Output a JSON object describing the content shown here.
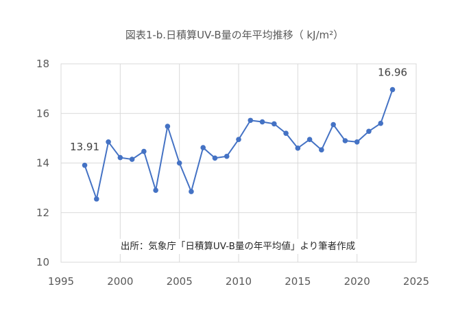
{
  "chart_data": {
    "type": "line",
    "title": "図表1-b.日積算UV-B量の年平均推移（ kJ/m²）",
    "xlabel": "",
    "ylabel": "",
    "xlim": [
      1995,
      2025
    ],
    "ylim": [
      10,
      18
    ],
    "x_ticks": [
      1995,
      2000,
      2005,
      2010,
      2015,
      2020,
      2025
    ],
    "y_ticks": [
      10,
      12,
      14,
      16,
      18
    ],
    "grid": true,
    "legend": null,
    "x": [
      1997,
      1998,
      1999,
      2000,
      2001,
      2002,
      2003,
      2004,
      2005,
      2006,
      2007,
      2008,
      2009,
      2010,
      2011,
      2012,
      2013,
      2014,
      2015,
      2016,
      2017,
      2018,
      2019,
      2020,
      2021,
      2022,
      2023
    ],
    "series": [
      {
        "name": "日積算UV-B量 年平均 (kJ/m²)",
        "color": "#4472C4",
        "values": [
          13.91,
          12.55,
          14.85,
          14.22,
          14.15,
          14.47,
          12.9,
          15.48,
          14.0,
          12.85,
          14.62,
          14.2,
          14.27,
          14.95,
          15.72,
          15.66,
          15.58,
          15.2,
          14.6,
          14.95,
          14.53,
          15.55,
          14.9,
          14.85,
          15.28,
          15.6,
          16.96
        ]
      }
    ],
    "annotations": [
      {
        "x": 1997,
        "y": 13.91,
        "text": "13.91"
      },
      {
        "x": 2023,
        "y": 16.96,
        "text": "16.96"
      }
    ],
    "source_note": "出所：気象庁「日積算UV-B量の年平均値」より筆者作成"
  },
  "colors": {
    "line": "#4472C4",
    "grid": "#d9d9d9",
    "axis_text": "#595959"
  }
}
